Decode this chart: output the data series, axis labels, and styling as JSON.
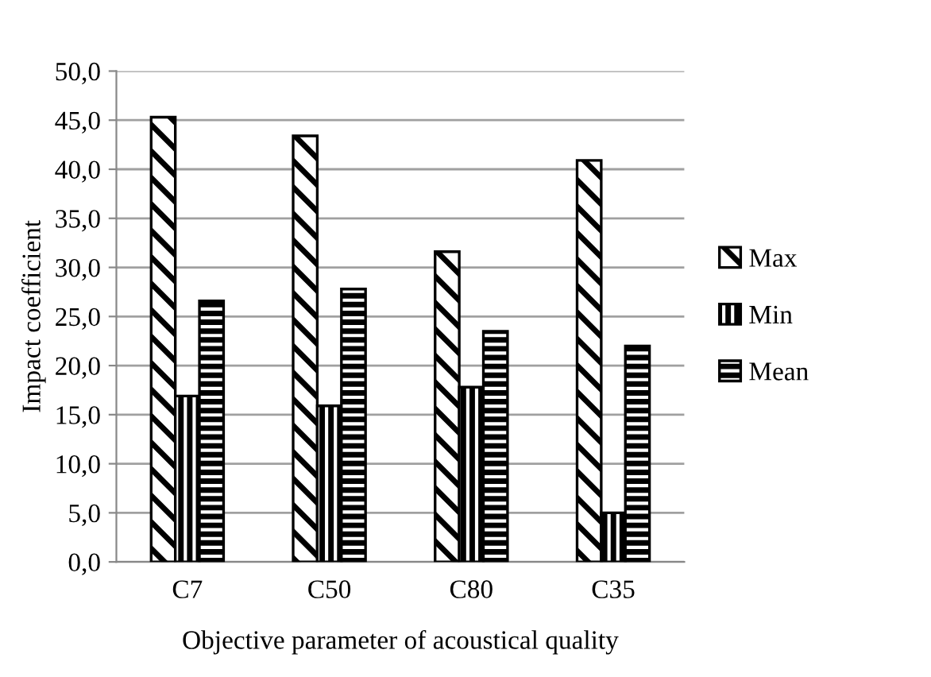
{
  "chart_data": {
    "type": "bar",
    "xlabel": "Objective parameter of acoustical quality",
    "ylabel": "Impact coefficient",
    "categories": [
      "C7",
      "C50",
      "C80",
      "C35"
    ],
    "series": [
      {
        "name": "Max",
        "color": "#000000",
        "values": [
          45.3,
          43.4,
          31.6,
          40.9
        ]
      },
      {
        "name": "Min",
        "color": "#000000",
        "values": [
          16.9,
          15.9,
          17.8,
          5.0
        ]
      },
      {
        "name": "Mean",
        "color": "#000000",
        "values": [
          26.6,
          27.8,
          23.5,
          22.0
        ]
      }
    ],
    "ylim": [
      0,
      50
    ],
    "yticks": [
      {
        "value": 0,
        "label": "0,0"
      },
      {
        "value": 5,
        "label": "5,0"
      },
      {
        "value": 10,
        "label": "10,0"
      },
      {
        "value": 15,
        "label": "15,0"
      },
      {
        "value": 20,
        "label": "20,0"
      },
      {
        "value": 25,
        "label": "25,0"
      },
      {
        "value": 30,
        "label": "30,0"
      },
      {
        "value": 35,
        "label": "35,0"
      },
      {
        "value": 40,
        "label": "40,0"
      },
      {
        "value": 45,
        "label": "45,0"
      },
      {
        "value": 50,
        "label": "50,0"
      }
    ],
    "grid": "y",
    "legend": "right"
  }
}
